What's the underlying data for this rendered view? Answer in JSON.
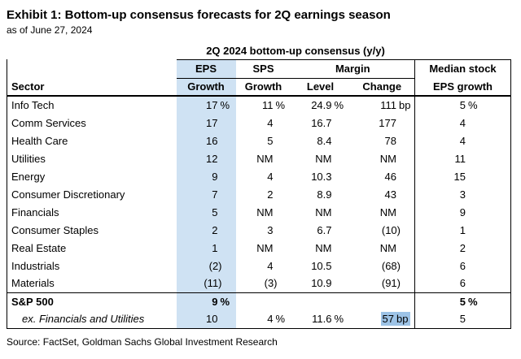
{
  "chart_data": {
    "type": "table",
    "title": "Exhibit 1: Bottom-up consensus forecasts for 2Q earnings season",
    "as_of": "as of June 27, 2024",
    "group_header": "2Q 2024 bottom-up consensus (y/y)",
    "column_groups": {
      "eps": "EPS",
      "sps": "SPS",
      "margin": "Margin",
      "median_line1": "Median stock",
      "median_line2": "EPS growth"
    },
    "headers": {
      "sector": "Sector",
      "eps_growth": "Growth",
      "sps_growth": "Growth",
      "margin_level": "Level",
      "margin_change": "Change"
    },
    "units": {
      "percent": "%",
      "basis_points": "bp"
    },
    "highlight_column": "EPS Growth",
    "highlight_column_color": "#cfe2f3",
    "highlight_cell_color": "#9dc3e6",
    "rows": [
      {
        "sector": "Info Tech",
        "cells": [
          {
            "v": "17",
            "u": "%"
          },
          {
            "v": "11",
            "u": "%"
          },
          {
            "v": "24.9",
            "u": "%"
          },
          {
            "v": "111",
            "u": "bp"
          },
          {
            "v": "5",
            "u": "%"
          }
        ]
      },
      {
        "sector": "Comm Services",
        "cells": [
          {
            "v": "17"
          },
          {
            "v": "4"
          },
          {
            "v": "16.7"
          },
          {
            "v": "177"
          },
          {
            "v": "4"
          }
        ]
      },
      {
        "sector": "Health Care",
        "cells": [
          {
            "v": "16"
          },
          {
            "v": "5"
          },
          {
            "v": "8.4"
          },
          {
            "v": "78"
          },
          {
            "v": "4"
          }
        ]
      },
      {
        "sector": "Utilities",
        "cells": [
          {
            "v": "12"
          },
          {
            "v": "NM"
          },
          {
            "v": "NM"
          },
          {
            "v": "NM"
          },
          {
            "v": "11"
          }
        ]
      },
      {
        "sector": "Energy",
        "cells": [
          {
            "v": "9"
          },
          {
            "v": "4"
          },
          {
            "v": "10.3"
          },
          {
            "v": "46"
          },
          {
            "v": "15"
          }
        ]
      },
      {
        "sector": "Consumer Discretionary",
        "cells": [
          {
            "v": "7"
          },
          {
            "v": "2"
          },
          {
            "v": "8.9"
          },
          {
            "v": "43"
          },
          {
            "v": "3"
          }
        ]
      },
      {
        "sector": "Financials",
        "cells": [
          {
            "v": "5"
          },
          {
            "v": "NM"
          },
          {
            "v": "NM"
          },
          {
            "v": "NM"
          },
          {
            "v": "9"
          }
        ]
      },
      {
        "sector": "Consumer Staples",
        "cells": [
          {
            "v": "2"
          },
          {
            "v": "3"
          },
          {
            "v": "6.7"
          },
          {
            "v": "(10)"
          },
          {
            "v": "1"
          }
        ]
      },
      {
        "sector": "Real Estate",
        "cells": [
          {
            "v": "1"
          },
          {
            "v": "NM"
          },
          {
            "v": "NM"
          },
          {
            "v": "NM"
          },
          {
            "v": "2"
          }
        ]
      },
      {
        "sector": "Industrials",
        "cells": [
          {
            "v": "(2)"
          },
          {
            "v": "4"
          },
          {
            "v": "10.5"
          },
          {
            "v": "(68)"
          },
          {
            "v": "6"
          }
        ]
      },
      {
        "sector": "Materials",
        "cells": [
          {
            "v": "(11)"
          },
          {
            "v": "(3)"
          },
          {
            "v": "10.9"
          },
          {
            "v": "(91)"
          },
          {
            "v": "6"
          }
        ]
      }
    ],
    "summary_rows": [
      {
        "sector": "S&P 500",
        "style": "bold",
        "cells": [
          {
            "v": "9",
            "u": "%"
          },
          {
            "v": ""
          },
          {
            "v": ""
          },
          {
            "v": ""
          },
          {
            "v": "5",
            "u": "%"
          }
        ]
      },
      {
        "sector": "ex. Financials and Utilities",
        "style": "italic",
        "cells": [
          {
            "v": "10"
          },
          {
            "v": "4",
            "u": "%"
          },
          {
            "v": "11.6",
            "u": "%"
          },
          {
            "v": "57",
            "u": "bp",
            "hl": true
          },
          {
            "v": "5"
          }
        ]
      }
    ],
    "source": "Source: FactSet, Goldman Sachs Global Investment Research"
  }
}
